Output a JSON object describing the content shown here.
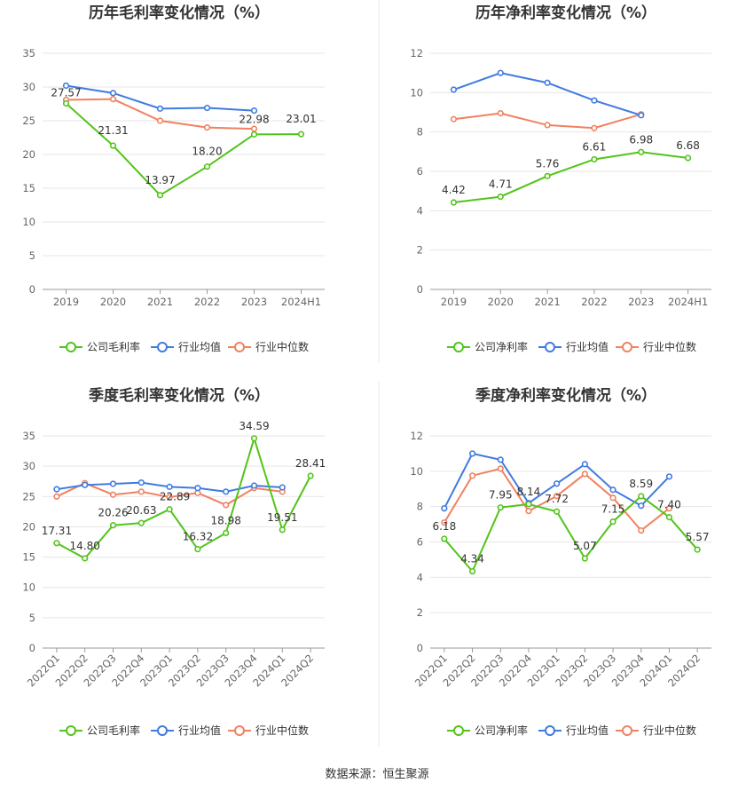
{
  "colors": {
    "company": "#52c41a",
    "industry_avg": "#3f7be0",
    "industry_median": "#f08161",
    "grid": "#e6e6e6",
    "axis": "#999999",
    "divider": "#e8e8e8"
  },
  "footer": {
    "source": "数据来源：恒生聚源"
  },
  "chart_data": [
    {
      "id": "annual-gross",
      "type": "line",
      "title": "历年毛利率变化情况（%）",
      "categories": [
        "2019",
        "2020",
        "2021",
        "2022",
        "2023",
        "2024H1"
      ],
      "ylim": [
        0,
        35
      ],
      "yticks": [
        0,
        5,
        10,
        15,
        20,
        25,
        30,
        35
      ],
      "rotate_x": false,
      "series": [
        {
          "name": "公司毛利率",
          "role": "company",
          "values": [
            27.57,
            21.31,
            13.97,
            18.2,
            22.98,
            23.01
          ],
          "labels": [
            "27.57",
            "21.31",
            "13.97",
            "18.20",
            "22.98",
            "23.01"
          ]
        },
        {
          "name": "行业均值",
          "role": "industry_avg",
          "values": [
            30.2,
            29.1,
            26.8,
            26.9,
            26.5,
            null
          ]
        },
        {
          "name": "行业中位数",
          "role": "industry_median",
          "values": [
            28.1,
            28.2,
            25.0,
            24.0,
            23.8,
            null
          ]
        }
      ]
    },
    {
      "id": "annual-net",
      "type": "line",
      "title": "历年净利率变化情况（%）",
      "categories": [
        "2019",
        "2020",
        "2021",
        "2022",
        "2023",
        "2024H1"
      ],
      "ylim": [
        0,
        12
      ],
      "yticks": [
        0,
        2,
        4,
        6,
        8,
        10,
        12
      ],
      "rotate_x": false,
      "series": [
        {
          "name": "公司净利率",
          "role": "company",
          "values": [
            4.42,
            4.71,
            5.76,
            6.61,
            6.98,
            6.68
          ],
          "labels": [
            "4.42",
            "4.71",
            "5.76",
            "6.61",
            "6.98",
            "6.68"
          ]
        },
        {
          "name": "行业均值",
          "role": "industry_avg",
          "values": [
            10.15,
            11.0,
            10.5,
            9.6,
            8.85,
            null
          ]
        },
        {
          "name": "行业中位数",
          "role": "industry_median",
          "values": [
            8.65,
            8.95,
            8.35,
            8.2,
            8.9,
            null
          ]
        }
      ]
    },
    {
      "id": "quarterly-gross",
      "type": "line",
      "title": "季度毛利率变化情况（%）",
      "categories": [
        "2022Q1",
        "2022Q2",
        "2022Q3",
        "2022Q4",
        "2023Q1",
        "2023Q2",
        "2023Q3",
        "2023Q4",
        "2024Q1",
        "2024Q2"
      ],
      "ylim": [
        0,
        35
      ],
      "yticks": [
        0,
        5,
        10,
        15,
        20,
        25,
        30,
        35
      ],
      "rotate_x": true,
      "series": [
        {
          "name": "公司毛利率",
          "role": "company",
          "values": [
            17.31,
            14.8,
            20.26,
            20.63,
            22.89,
            16.32,
            18.98,
            34.59,
            19.51,
            28.41
          ],
          "labels": [
            "17.31",
            "14.80",
            "20.26",
            "20.63",
            "22.89",
            "16.32",
            "18.98",
            "34.59",
            "19.51",
            "28.41"
          ]
        },
        {
          "name": "行业均值",
          "role": "industry_avg",
          "values": [
            26.2,
            26.9,
            27.1,
            27.3,
            26.6,
            26.4,
            25.8,
            26.8,
            26.5,
            null
          ]
        },
        {
          "name": "行业中位数",
          "role": "industry_median",
          "values": [
            25.0,
            27.2,
            25.3,
            25.8,
            24.9,
            25.6,
            23.6,
            26.4,
            25.8,
            null
          ]
        }
      ]
    },
    {
      "id": "quarterly-net",
      "type": "line",
      "title": "季度净利率变化情况（%）",
      "categories": [
        "2022Q1",
        "2022Q2",
        "2022Q3",
        "2022Q4",
        "2023Q1",
        "2023Q2",
        "2023Q3",
        "2023Q4",
        "2024Q1",
        "2024Q2"
      ],
      "ylim": [
        0,
        12
      ],
      "yticks": [
        0,
        2,
        4,
        6,
        8,
        10,
        12
      ],
      "rotate_x": true,
      "series": [
        {
          "name": "公司净利率",
          "role": "company",
          "values": [
            6.18,
            4.34,
            7.95,
            8.14,
            7.72,
            5.07,
            7.15,
            8.59,
            7.4,
            5.57
          ],
          "labels": [
            "6.18",
            "4.34",
            "7.95",
            "8.14",
            "7.72",
            "5.07",
            "7.15",
            "8.59",
            "7.40",
            "5.57"
          ]
        },
        {
          "name": "行业均值",
          "role": "industry_avg",
          "values": [
            7.9,
            11.0,
            10.65,
            8.2,
            9.3,
            10.4,
            8.95,
            8.05,
            9.7,
            null
          ]
        },
        {
          "name": "行业中位数",
          "role": "industry_median",
          "values": [
            7.1,
            9.75,
            10.15,
            7.75,
            8.6,
            9.85,
            8.5,
            6.65,
            7.9,
            null
          ]
        }
      ]
    }
  ]
}
